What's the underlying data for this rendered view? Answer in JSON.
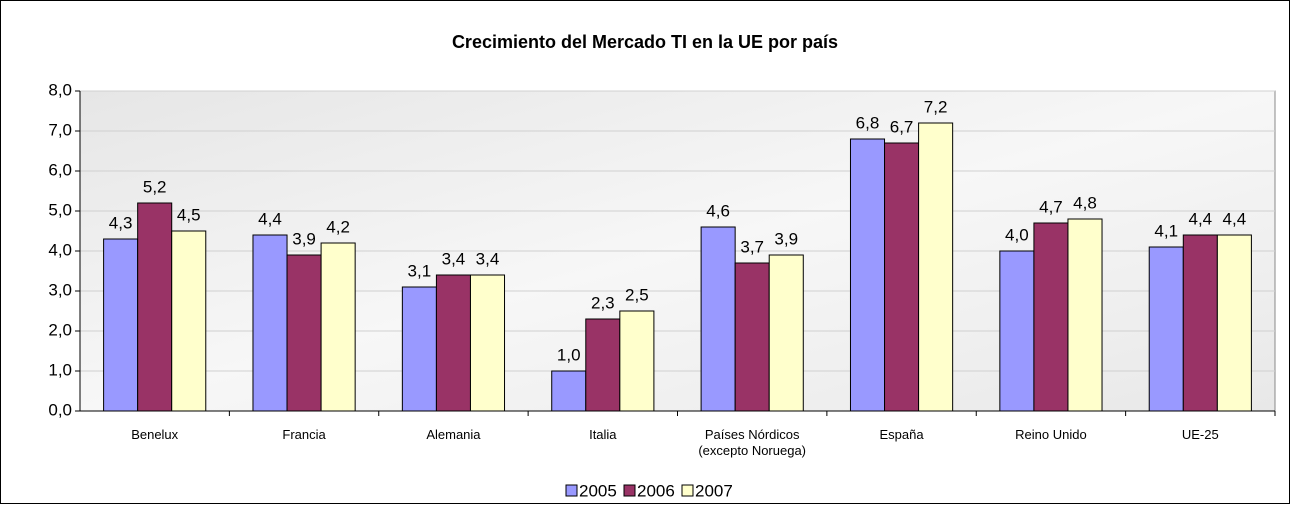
{
  "chart_data": {
    "type": "bar",
    "title": "Crecimiento del Mercado TI en la UE por país",
    "categories": [
      "Benelux",
      "Francia",
      "Alemania",
      "Italia",
      "Países Nórdicos\n(excepto Noruega)",
      "España",
      "Reino Unido",
      "UE-25"
    ],
    "series": [
      {
        "name": "2005",
        "color": "#9999ff",
        "values": [
          4.3,
          4.4,
          3.1,
          1.0,
          4.6,
          6.8,
          4.0,
          4.1
        ],
        "value_labels": [
          "4,3",
          "4,4",
          "3,1",
          "1,0",
          "4,6",
          "6,8",
          "4,0",
          "4,1"
        ]
      },
      {
        "name": "2006",
        "color": "#993366",
        "values": [
          5.2,
          3.9,
          3.4,
          2.3,
          3.7,
          6.7,
          4.7,
          4.4
        ],
        "value_labels": [
          "5,2",
          "3,9",
          "3,4",
          "2,3",
          "3,7",
          "6,7",
          "4,7",
          "4,4"
        ]
      },
      {
        "name": "2007",
        "color": "#ffffcc",
        "values": [
          4.5,
          4.2,
          3.4,
          2.5,
          3.9,
          7.2,
          4.8,
          4.4
        ],
        "value_labels": [
          "4,5",
          "4,2",
          "3,4",
          "2,5",
          "3,9",
          "7,2",
          "4,8",
          "4,4"
        ]
      }
    ],
    "ylim": [
      0,
      8
    ],
    "yticks": [
      {
        "value": 0,
        "label": "0,0"
      },
      {
        "value": 1,
        "label": "1,0"
      },
      {
        "value": 2,
        "label": "2,0"
      },
      {
        "value": 3,
        "label": "3,0"
      },
      {
        "value": 4,
        "label": "4,0"
      },
      {
        "value": 5,
        "label": "5,0"
      },
      {
        "value": 6,
        "label": "6,0"
      },
      {
        "value": 7,
        "label": "7,0"
      },
      {
        "value": 8,
        "label": "8,0"
      }
    ],
    "grid": true,
    "legend": "bottom"
  }
}
